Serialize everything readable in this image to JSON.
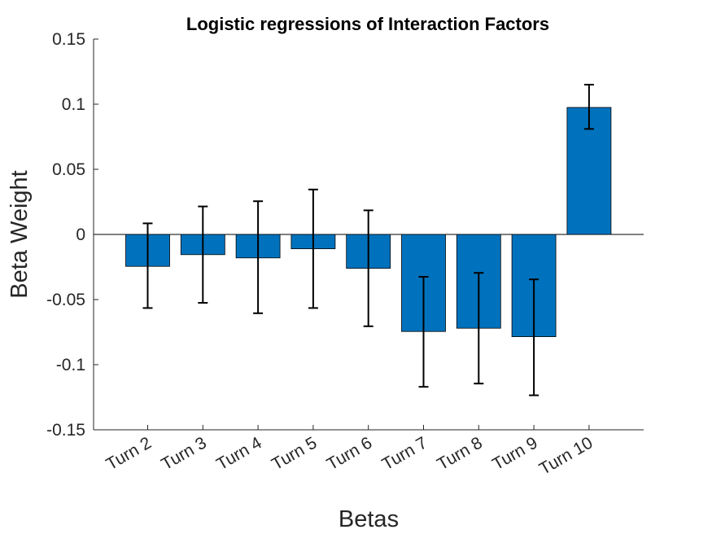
{
  "chart_data": {
    "type": "bar",
    "title": "Logistic regressions of Interaction Factors",
    "xlabel": "Betas",
    "ylabel": "Beta Weight",
    "ylim": [
      -0.15,
      0.15
    ],
    "yticks": [
      0.15,
      0.1,
      0.05,
      0,
      -0.05,
      -0.1,
      -0.15
    ],
    "ytick_labels": [
      "0.15",
      "0.1",
      "0.05",
      "0",
      "-0.05",
      "-0.1",
      "-0.15"
    ],
    "categories": [
      "Turn 2",
      "Turn 3",
      "Turn 4",
      "Turn 5",
      "Turn 6",
      "Turn 7",
      "Turn 8",
      "Turn 9",
      "Turn 10"
    ],
    "values": [
      -0.0245,
      -0.0155,
      -0.018,
      -0.011,
      -0.026,
      -0.0745,
      -0.072,
      -0.0785,
      0.0975
    ],
    "error_low": [
      -0.0565,
      -0.0525,
      -0.0605,
      -0.0565,
      -0.0705,
      -0.117,
      -0.1145,
      -0.1235,
      0.081
    ],
    "error_high": [
      0.0085,
      0.0215,
      0.0255,
      0.0345,
      0.0185,
      -0.0325,
      -0.0295,
      -0.0345,
      0.115
    ],
    "bar_color": "#0072BD",
    "grid": false
  }
}
